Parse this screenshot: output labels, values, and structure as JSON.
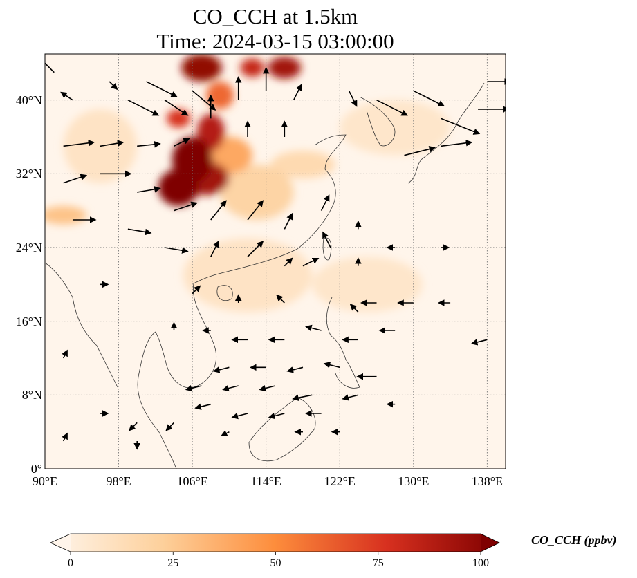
{
  "title": {
    "line1": "CO_CCH at 1.5km",
    "line2": "Time: 2024-03-15 03:00:00"
  },
  "map": {
    "lon_range": [
      90,
      140
    ],
    "lat_range": [
      0,
      45
    ],
    "lat_ticks": [
      {
        "value": 0,
        "label": "0°"
      },
      {
        "value": 8,
        "label": "8°N"
      },
      {
        "value": 16,
        "label": "16°N"
      },
      {
        "value": 24,
        "label": "24°N"
      },
      {
        "value": 32,
        "label": "32°N"
      },
      {
        "value": 40,
        "label": "40°N"
      }
    ],
    "lon_ticks": [
      {
        "value": 90,
        "label": "90°E"
      },
      {
        "value": 98,
        "label": "98°E"
      },
      {
        "value": 106,
        "label": "106°E"
      },
      {
        "value": 114,
        "label": "114°E"
      },
      {
        "value": 122,
        "label": "122°E"
      },
      {
        "value": 130,
        "label": "130°E"
      },
      {
        "value": 138,
        "label": "138°E"
      }
    ],
    "gridlines": "dotted",
    "field_colors": {
      "low": "#fff5eb",
      "mid": "#fdae6b",
      "high": "#d94801",
      "max": "#7f0000"
    },
    "plumes": [
      {
        "lon": 104.5,
        "lat": 30.5,
        "rlon": 2.2,
        "rlat": 2.0,
        "value": 100
      },
      {
        "lon": 106.0,
        "lat": 33.5,
        "rlon": 2.2,
        "rlat": 2.5,
        "value": 100
      },
      {
        "lon": 107.5,
        "lat": 31.5,
        "rlon": 2.5,
        "rlat": 1.8,
        "value": 90
      },
      {
        "lon": 108.0,
        "lat": 36.5,
        "rlon": 1.5,
        "rlat": 2.0,
        "value": 85
      },
      {
        "lon": 104.5,
        "lat": 38.0,
        "rlon": 1.3,
        "rlat": 1.0,
        "value": 75
      },
      {
        "lon": 107.0,
        "lat": 43.5,
        "rlon": 2.2,
        "rlat": 1.5,
        "value": 95
      },
      {
        "lon": 112.5,
        "lat": 43.5,
        "rlon": 1.3,
        "rlat": 1.0,
        "value": 80
      },
      {
        "lon": 116.0,
        "lat": 43.5,
        "rlon": 1.8,
        "rlat": 1.2,
        "value": 90
      },
      {
        "lon": 109.0,
        "lat": 40.5,
        "rlon": 1.5,
        "rlat": 1.5,
        "value": 60
      },
      {
        "lon": 110.0,
        "lat": 34.0,
        "rlon": 2.5,
        "rlat": 2.0,
        "value": 40
      },
      {
        "lon": 113.0,
        "lat": 30.0,
        "rlon": 4.0,
        "rlat": 3.0,
        "value": 22
      },
      {
        "lon": 118.0,
        "lat": 33.0,
        "rlon": 3.5,
        "rlat": 1.5,
        "value": 18
      },
      {
        "lon": 92.0,
        "lat": 27.5,
        "rlon": 2.5,
        "rlat": 1.0,
        "value": 30
      },
      {
        "lon": 96.0,
        "lat": 35.0,
        "rlon": 4.0,
        "rlat": 4.0,
        "value": 12
      },
      {
        "lon": 128.0,
        "lat": 37.0,
        "rlon": 6.0,
        "rlat": 3.0,
        "value": 10
      },
      {
        "lon": 112.0,
        "lat": 21.0,
        "rlon": 7.0,
        "rlat": 4.0,
        "value": 12
      },
      {
        "lon": 125.0,
        "lat": 20.0,
        "rlon": 6.0,
        "rlat": 3.0,
        "value": 10
      }
    ],
    "wind_vectors": [
      {
        "lon": 91,
        "lat": 43,
        "u": -2,
        "v": 2
      },
      {
        "lon": 93,
        "lat": 40,
        "u": -1.5,
        "v": 1
      },
      {
        "lon": 97,
        "lat": 42,
        "u": 1,
        "v": -1
      },
      {
        "lon": 99,
        "lat": 40,
        "u": 4,
        "v": -2
      },
      {
        "lon": 101,
        "lat": 42,
        "u": 4,
        "v": -2
      },
      {
        "lon": 103,
        "lat": 40,
        "u": 3,
        "v": -2
      },
      {
        "lon": 106,
        "lat": 41,
        "u": 3,
        "v": -2.5
      },
      {
        "lon": 108,
        "lat": 38,
        "u": 0,
        "v": 3
      },
      {
        "lon": 111,
        "lat": 40,
        "u": 0,
        "v": 3
      },
      {
        "lon": 114,
        "lat": 41,
        "u": 0,
        "v": 3
      },
      {
        "lon": 117,
        "lat": 40,
        "u": 1,
        "v": 2
      },
      {
        "lon": 123,
        "lat": 41,
        "u": 1,
        "v": -2
      },
      {
        "lon": 126,
        "lat": 40,
        "u": 4,
        "v": -2
      },
      {
        "lon": 130,
        "lat": 41,
        "u": 4,
        "v": -2
      },
      {
        "lon": 133,
        "lat": 38,
        "u": 5,
        "v": -2
      },
      {
        "lon": 137,
        "lat": 39,
        "u": 4,
        "v": 0
      },
      {
        "lon": 138,
        "lat": 42,
        "u": 3,
        "v": 0
      },
      {
        "lon": 92,
        "lat": 35,
        "u": 4,
        "v": 0.5
      },
      {
        "lon": 96,
        "lat": 35,
        "u": 3,
        "v": 0.5
      },
      {
        "lon": 100,
        "lat": 35,
        "u": 3,
        "v": 0.3
      },
      {
        "lon": 104,
        "lat": 35,
        "u": 2,
        "v": 1
      },
      {
        "lon": 112,
        "lat": 36,
        "u": 0,
        "v": 2
      },
      {
        "lon": 116,
        "lat": 36,
        "u": 0,
        "v": 2
      },
      {
        "lon": 129,
        "lat": 34,
        "u": 4,
        "v": 1
      },
      {
        "lon": 133,
        "lat": 35,
        "u": 4,
        "v": 0.5
      },
      {
        "lon": 92,
        "lat": 31,
        "u": 3,
        "v": 1
      },
      {
        "lon": 96,
        "lat": 32,
        "u": 4,
        "v": 0
      },
      {
        "lon": 100,
        "lat": 30,
        "u": 3,
        "v": 0.5
      },
      {
        "lon": 104,
        "lat": 28,
        "u": 3,
        "v": 1
      },
      {
        "lon": 108,
        "lat": 27,
        "u": 2,
        "v": 2.5
      },
      {
        "lon": 112,
        "lat": 27,
        "u": 2,
        "v": 2.5
      },
      {
        "lon": 116,
        "lat": 26,
        "u": 1,
        "v": 2
      },
      {
        "lon": 120,
        "lat": 28,
        "u": 1,
        "v": 2
      },
      {
        "lon": 124,
        "lat": 26,
        "u": 0,
        "v": 1
      },
      {
        "lon": 93,
        "lat": 27,
        "u": 3,
        "v": 0
      },
      {
        "lon": 99,
        "lat": 26,
        "u": 3,
        "v": -0.5
      },
      {
        "lon": 103,
        "lat": 24,
        "u": 3,
        "v": -0.5
      },
      {
        "lon": 108,
        "lat": 23,
        "u": 1,
        "v": 2
      },
      {
        "lon": 112,
        "lat": 23,
        "u": 2,
        "v": 2
      },
      {
        "lon": 116,
        "lat": 22,
        "u": 1,
        "v": 1
      },
      {
        "lon": 118,
        "lat": 22,
        "u": 2,
        "v": 1
      },
      {
        "lon": 121,
        "lat": 24,
        "u": -1,
        "v": 2
      },
      {
        "lon": 124,
        "lat": 22,
        "u": 0,
        "v": 1
      },
      {
        "lon": 128,
        "lat": 24,
        "u": -1,
        "v": 0
      },
      {
        "lon": 133,
        "lat": 24,
        "u": 1,
        "v": 0
      },
      {
        "lon": 106,
        "lat": 19,
        "u": 1,
        "v": 1
      },
      {
        "lon": 111,
        "lat": 18,
        "u": 0,
        "v": 1
      },
      {
        "lon": 116,
        "lat": 18,
        "u": -1,
        "v": 1
      },
      {
        "lon": 126,
        "lat": 18,
        "u": -2,
        "v": 0
      },
      {
        "lon": 130,
        "lat": 18,
        "u": -2,
        "v": 0
      },
      {
        "lon": 134,
        "lat": 18,
        "u": -1.5,
        "v": 0
      },
      {
        "lon": 124,
        "lat": 17,
        "u": -1,
        "v": 1
      },
      {
        "lon": 104,
        "lat": 15,
        "u": 0,
        "v": 1
      },
      {
        "lon": 108,
        "lat": 15,
        "u": -1,
        "v": 0
      },
      {
        "lon": 112,
        "lat": 14,
        "u": -2,
        "v": 0
      },
      {
        "lon": 116,
        "lat": 14,
        "u": -2,
        "v": 0
      },
      {
        "lon": 120,
        "lat": 15,
        "u": -2,
        "v": 0.5
      },
      {
        "lon": 124,
        "lat": 14,
        "u": -2,
        "v": 0
      },
      {
        "lon": 128,
        "lat": 15,
        "u": -2,
        "v": 0
      },
      {
        "lon": 138,
        "lat": 14,
        "u": -2,
        "v": -0.5
      },
      {
        "lon": 110,
        "lat": 11,
        "u": -2,
        "v": -0.5
      },
      {
        "lon": 114,
        "lat": 11,
        "u": -2,
        "v": 0
      },
      {
        "lon": 118,
        "lat": 11,
        "u": -2,
        "v": -0.5
      },
      {
        "lon": 122,
        "lat": 11,
        "u": -2,
        "v": 0.5
      },
      {
        "lon": 126,
        "lat": 10,
        "u": -2.5,
        "v": 0
      },
      {
        "lon": 107,
        "lat": 9,
        "u": -2,
        "v": -0.5
      },
      {
        "lon": 111,
        "lat": 9,
        "u": -2,
        "v": -0.5
      },
      {
        "lon": 115,
        "lat": 9,
        "u": -2,
        "v": -0.5
      },
      {
        "lon": 119,
        "lat": 8,
        "u": -2.5,
        "v": -0.5
      },
      {
        "lon": 124,
        "lat": 8,
        "u": -2,
        "v": -0.5
      },
      {
        "lon": 128,
        "lat": 7,
        "u": -1,
        "v": 0
      },
      {
        "lon": 108,
        "lat": 7,
        "u": -2,
        "v": -0.5
      },
      {
        "lon": 112,
        "lat": 6,
        "u": -2,
        "v": -0.5
      },
      {
        "lon": 116,
        "lat": 6,
        "u": -2,
        "v": -0.5
      },
      {
        "lon": 120,
        "lat": 6,
        "u": -2,
        "v": 0
      },
      {
        "lon": 96,
        "lat": 6,
        "u": 1,
        "v": 0
      },
      {
        "lon": 100,
        "lat": 5,
        "u": -1,
        "v": -1
      },
      {
        "lon": 104,
        "lat": 5,
        "u": -1,
        "v": -1
      },
      {
        "lon": 110,
        "lat": 4,
        "u": -1,
        "v": -0.5
      },
      {
        "lon": 118,
        "lat": 4,
        "u": -1,
        "v": 0
      },
      {
        "lon": 122,
        "lat": 4,
        "u": -1,
        "v": 0
      },
      {
        "lon": 92,
        "lat": 3,
        "u": 0.5,
        "v": 1
      },
      {
        "lon": 100,
        "lat": 3,
        "u": 0,
        "v": -1
      },
      {
        "lon": 92,
        "lat": 12,
        "u": 0.5,
        "v": 1
      },
      {
        "lon": 96,
        "lat": 20,
        "u": 1,
        "v": 0
      }
    ]
  },
  "colorbar": {
    "label": "CO_CCH (ppbv)",
    "min": 0,
    "max": 100,
    "extend": "both",
    "ticks": [
      "0",
      "25",
      "50",
      "75",
      "100"
    ]
  }
}
